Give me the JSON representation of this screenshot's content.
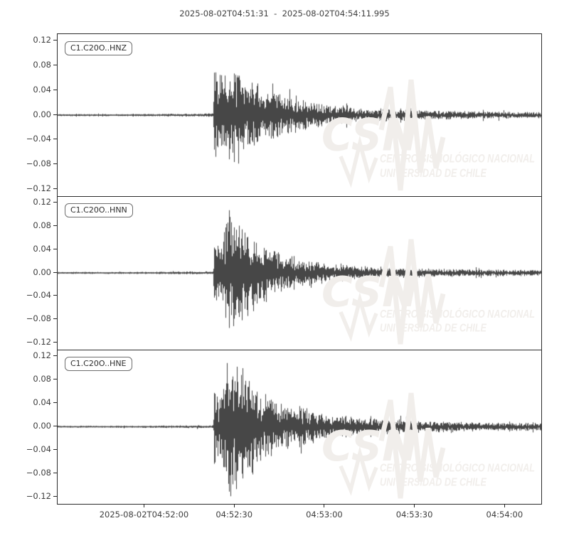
{
  "header": {
    "title": "2025-08-02T04:51:31  -  2025-08-02T04:54:11.995"
  },
  "watermark": {
    "logo": "CSN",
    "line1": "CENTRO SISMOLÓGICO NACIONAL",
    "line2": "UNIVERSIDAD DE CHILE",
    "color": "#f1eeeb"
  },
  "chart_data": {
    "type": "line",
    "title": "2025-08-02T04:51:31  -  2025-08-02T04:54:11.995",
    "start_time": "2025-08-02T04:51:31",
    "end_time": "2025-08-02T04:54:11.995",
    "duration_s": 160.995,
    "trace_color": "#474747",
    "axis_color": "#262626",
    "label_color": "#3d3d3d",
    "grid": false,
    "ylim": [
      -0.131,
      0.131
    ],
    "yticks": [
      {
        "v": 0.12,
        "label": "0.12"
      },
      {
        "v": 0.08,
        "label": "0.08"
      },
      {
        "v": 0.04,
        "label": "0.04"
      },
      {
        "v": 0.0,
        "label": "0.00"
      },
      {
        "v": -0.04,
        "label": "−0.04"
      },
      {
        "v": -0.08,
        "label": "−0.08"
      },
      {
        "v": -0.12,
        "label": "−0.12"
      }
    ],
    "xticks": [
      {
        "t": 29,
        "label": "2025-08-02T04:52:00"
      },
      {
        "t": 59,
        "label": "04:52:30"
      },
      {
        "t": 89,
        "label": "04:53:00"
      },
      {
        "t": 119,
        "label": "04:53:30"
      },
      {
        "t": 149,
        "label": "04:54:00"
      }
    ],
    "event_onset_s": 51.8,
    "series": [
      {
        "name": "C1.C20O..HNZ",
        "max_value": 0.088,
        "min_value": -0.1,
        "envelope": [
          [
            0,
            0.0013
          ],
          [
            20,
            0.0013
          ],
          [
            35,
            0.0016
          ],
          [
            45,
            0.002
          ],
          [
            51.6,
            0.0022
          ],
          [
            51.8,
            0.01
          ],
          [
            51.95,
            0.092
          ],
          [
            52.3,
            0.07
          ],
          [
            52.9,
            0.045
          ],
          [
            54,
            0.048
          ],
          [
            55.5,
            0.056
          ],
          [
            56.5,
            0.062
          ],
          [
            57.5,
            0.052
          ],
          [
            58.5,
            0.06
          ],
          [
            59.5,
            0.066
          ],
          [
            60.5,
            0.058
          ],
          [
            61.5,
            0.062
          ],
          [
            62.5,
            0.052
          ],
          [
            64,
            0.046
          ],
          [
            66,
            0.04
          ],
          [
            68,
            0.036
          ],
          [
            70,
            0.034
          ],
          [
            73,
            0.029
          ],
          [
            76,
            0.026
          ],
          [
            80,
            0.022
          ],
          [
            84,
            0.018
          ],
          [
            88,
            0.015
          ],
          [
            92,
            0.013
          ],
          [
            96,
            0.011
          ],
          [
            100,
            0.0095
          ],
          [
            105,
            0.0085
          ],
          [
            110,
            0.0075
          ],
          [
            115,
            0.007
          ],
          [
            120,
            0.0065
          ],
          [
            126,
            0.0058
          ],
          [
            132,
            0.0052
          ],
          [
            140,
            0.0048
          ],
          [
            150,
            0.0042
          ],
          [
            161,
            0.004
          ]
        ]
      },
      {
        "name": "C1.C20O..HNN",
        "max_value": 0.107,
        "min_value": -0.094,
        "envelope": [
          [
            0,
            0.0013
          ],
          [
            25,
            0.0014
          ],
          [
            40,
            0.0018
          ],
          [
            51.6,
            0.002
          ],
          [
            51.8,
            0.012
          ],
          [
            52,
            0.05
          ],
          [
            52.6,
            0.042
          ],
          [
            53.6,
            0.04
          ],
          [
            54.6,
            0.052
          ],
          [
            55.6,
            0.062
          ],
          [
            56.4,
            0.078
          ],
          [
            57.1,
            0.092
          ],
          [
            57.8,
            0.082
          ],
          [
            58.6,
            0.09
          ],
          [
            59.5,
            0.075
          ],
          [
            60.5,
            0.078
          ],
          [
            61.5,
            0.066
          ],
          [
            63,
            0.058
          ],
          [
            65,
            0.05
          ],
          [
            67,
            0.044
          ],
          [
            69,
            0.038
          ],
          [
            72,
            0.031
          ],
          [
            75,
            0.027
          ],
          [
            78,
            0.023
          ],
          [
            82,
            0.019
          ],
          [
            86,
            0.015
          ],
          [
            90,
            0.0125
          ],
          [
            95,
            0.0105
          ],
          [
            100,
            0.009
          ],
          [
            106,
            0.0078
          ],
          [
            112,
            0.0068
          ],
          [
            120,
            0.006
          ],
          [
            128,
            0.0054
          ],
          [
            138,
            0.0048
          ],
          [
            150,
            0.0043
          ],
          [
            161,
            0.004
          ]
        ]
      },
      {
        "name": "C1.C20O..HNE",
        "max_value": 0.124,
        "min_value": -0.118,
        "envelope": [
          [
            0,
            0.0013
          ],
          [
            25,
            0.0014
          ],
          [
            40,
            0.0018
          ],
          [
            51.6,
            0.002
          ],
          [
            51.8,
            0.012
          ],
          [
            52,
            0.055
          ],
          [
            52.7,
            0.048
          ],
          [
            53.7,
            0.044
          ],
          [
            54.7,
            0.058
          ],
          [
            55.6,
            0.08
          ],
          [
            56.4,
            0.098
          ],
          [
            57.1,
            0.108
          ],
          [
            57.9,
            0.09
          ],
          [
            58.7,
            0.098
          ],
          [
            59.6,
            0.082
          ],
          [
            60.6,
            0.072
          ],
          [
            61.6,
            0.076
          ],
          [
            62.6,
            0.062
          ],
          [
            64,
            0.058
          ],
          [
            66,
            0.053
          ],
          [
            68,
            0.045
          ],
          [
            70,
            0.04
          ],
          [
            73,
            0.036
          ],
          [
            76,
            0.031
          ],
          [
            80,
            0.027
          ],
          [
            84,
            0.023
          ],
          [
            88,
            0.02
          ],
          [
            92,
            0.017
          ],
          [
            96,
            0.0145
          ],
          [
            100,
            0.0125
          ],
          [
            105,
            0.011
          ],
          [
            110,
            0.0095
          ],
          [
            116,
            0.0085
          ],
          [
            122,
            0.0075
          ],
          [
            130,
            0.0068
          ],
          [
            140,
            0.006
          ],
          [
            150,
            0.0055
          ],
          [
            161,
            0.005
          ]
        ]
      }
    ]
  }
}
